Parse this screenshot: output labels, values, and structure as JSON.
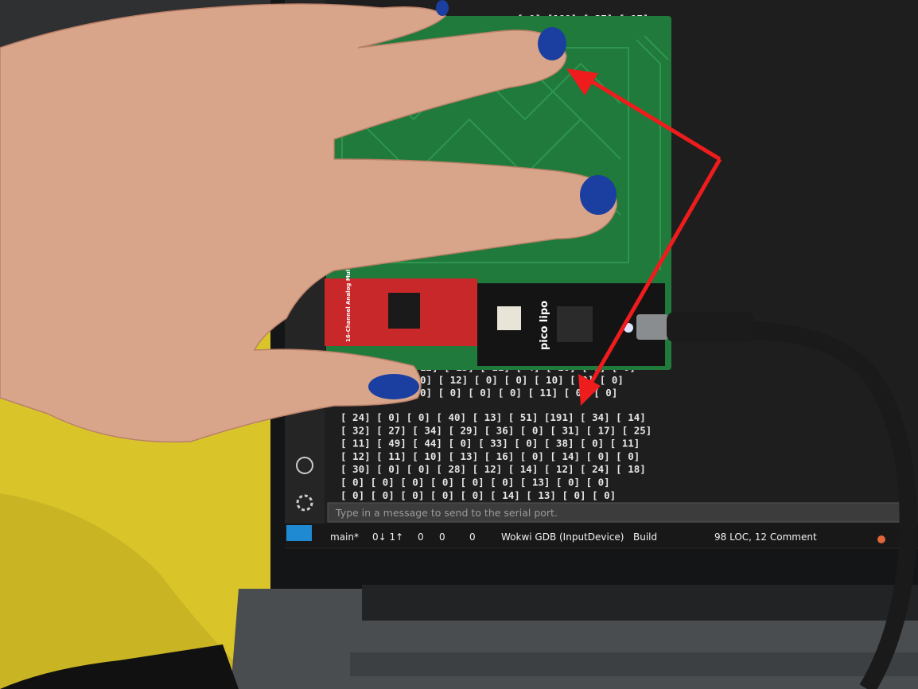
{
  "serial_monitor": {
    "top_line": "[ 0] [189] [ 27] [ 17]",
    "partial_lines": [
      "12] [ 13] [ 11] [ 4] [ 10] [ 0] [ 0]",
      "0] [ 12] [ 0] [ 0] [ 10] [ 0] [ 0]",
      "0] [ 0] [ 0] [ 0] [ 11] [ 0] [ 0]"
    ],
    "lines": [
      "[ 24] [  0] [  0] [ 40] [ 13] [ 51] [191] [ 34] [ 14]",
      "[ 32] [ 27] [ 34] [ 29] [ 36] [  0] [ 31] [ 17] [ 25]",
      "[ 11] [ 49] [ 44] [  0] [ 33] [  0] [ 38] [  0] [ 11]",
      "[ 12] [ 11] [ 10] [ 13] [ 16] [  0] [ 14] [  0] [  0]",
      "[ 30] [  0] [  0] [ 28] [ 12] [ 14] [ 12] [ 24] [ 18]",
      "[  0] [  0] [  0] [  0] [  0] [  0] [ 13] [  0] [  0]",
      "[  0] [  0] [  0] [  0] [  0] [ 14] [ 13] [  0] [  0]"
    ],
    "input_placeholder": "Type in a message to send to the serial port."
  },
  "status_bar": {
    "branch": "main*",
    "sync": "0↓ 1↑",
    "errors": "0",
    "warnings": "0",
    "ports": "0",
    "debug": "Wokwi GDB (InputDevice)",
    "build": "Build",
    "stats": "98 LOC, 12 Comment"
  },
  "boards": {
    "mux_label": "16-Channel Analog Multiplexer",
    "pico_label": "pico lipo"
  }
}
